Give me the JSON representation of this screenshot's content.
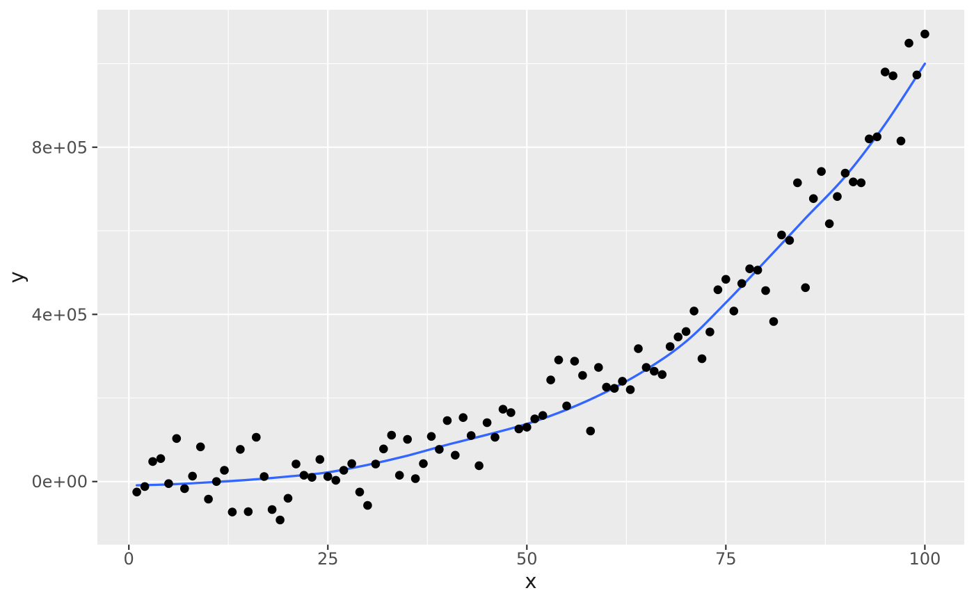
{
  "chart_data": {
    "type": "scatter",
    "title": "",
    "xlabel": "x",
    "ylabel": "y",
    "legend": "none",
    "grid": "major-and-minor",
    "panel": {
      "background": "#EBEBEB",
      "gridline_color": "#FFFFFF"
    },
    "colors": {
      "point": "#000000",
      "smooth_line": "#3366FF",
      "tick_mark": "#333333",
      "tick_label": "#4D4D4D",
      "axis_title": "#1A1A1A",
      "outer_background": "#FFFFFF"
    },
    "x_axis": {
      "ticks": [
        0,
        25,
        50,
        75,
        100
      ],
      "tick_labels": [
        "0",
        "25",
        "50",
        "75",
        "100"
      ],
      "minor_breaks": [
        12.5,
        37.5,
        62.5,
        87.5
      ],
      "limits": [
        -3.95,
        104.95
      ]
    },
    "y_axis": {
      "ticks": [
        0,
        400000,
        800000
      ],
      "tick_labels": [
        "0e+00",
        "4e+05",
        "8e+05"
      ],
      "minor_breaks": [
        200000,
        600000,
        1000000
      ],
      "limits": [
        -151000,
        1129000
      ]
    },
    "smooth_line": [
      [
        1,
        -9000
      ],
      [
        5,
        -7000
      ],
      [
        10,
        -2000
      ],
      [
        15,
        4000
      ],
      [
        20,
        12000
      ],
      [
        25,
        22000
      ],
      [
        30,
        40000
      ],
      [
        35,
        62000
      ],
      [
        40,
        88000
      ],
      [
        45,
        112000
      ],
      [
        50,
        138000
      ],
      [
        55,
        172000
      ],
      [
        60,
        215000
      ],
      [
        65,
        268000
      ],
      [
        70,
        335000
      ],
      [
        75,
        428000
      ],
      [
        80,
        528000
      ],
      [
        85,
        630000
      ],
      [
        90,
        730000
      ],
      [
        95,
        855000
      ],
      [
        100,
        1000000
      ]
    ],
    "points": [
      [
        1,
        -25000
      ],
      [
        2,
        -12000
      ],
      [
        3,
        48000
      ],
      [
        4,
        55000
      ],
      [
        5,
        -5000
      ],
      [
        6,
        103000
      ],
      [
        7,
        -17000
      ],
      [
        8,
        13000
      ],
      [
        9,
        83000
      ],
      [
        10,
        -42000
      ],
      [
        11,
        0
      ],
      [
        12,
        27000
      ],
      [
        13,
        -73000
      ],
      [
        14,
        77000
      ],
      [
        15,
        -72000
      ],
      [
        16,
        106000
      ],
      [
        17,
        12000
      ],
      [
        18,
        -67000
      ],
      [
        19,
        -92000
      ],
      [
        20,
        -40000
      ],
      [
        21,
        42000
      ],
      [
        22,
        15000
      ],
      [
        23,
        10000
      ],
      [
        24,
        53000
      ],
      [
        25,
        12000
      ],
      [
        26,
        3000
      ],
      [
        27,
        27000
      ],
      [
        28,
        43000
      ],
      [
        29,
        -25000
      ],
      [
        30,
        -57000
      ],
      [
        31,
        42000
      ],
      [
        32,
        78000
      ],
      [
        33,
        111000
      ],
      [
        34,
        15000
      ],
      [
        35,
        101000
      ],
      [
        36,
        7000
      ],
      [
        37,
        43000
      ],
      [
        38,
        108000
      ],
      [
        39,
        77000
      ],
      [
        40,
        146000
      ],
      [
        41,
        63000
      ],
      [
        42,
        153000
      ],
      [
        43,
        110000
      ],
      [
        44,
        38000
      ],
      [
        45,
        141000
      ],
      [
        46,
        106000
      ],
      [
        47,
        173000
      ],
      [
        48,
        165000
      ],
      [
        49,
        126000
      ],
      [
        50,
        130000
      ],
      [
        51,
        150000
      ],
      [
        52,
        158000
      ],
      [
        53,
        243000
      ],
      [
        54,
        291000
      ],
      [
        55,
        181000
      ],
      [
        56,
        288000
      ],
      [
        57,
        254000
      ],
      [
        58,
        121000
      ],
      [
        59,
        273000
      ],
      [
        60,
        226000
      ],
      [
        61,
        223000
      ],
      [
        62,
        240000
      ],
      [
        63,
        220000
      ],
      [
        64,
        318000
      ],
      [
        65,
        273000
      ],
      [
        66,
        264000
      ],
      [
        67,
        256000
      ],
      [
        68,
        323000
      ],
      [
        69,
        346000
      ],
      [
        70,
        359000
      ],
      [
        71,
        408000
      ],
      [
        72,
        294000
      ],
      [
        73,
        358000
      ],
      [
        74,
        459000
      ],
      [
        75,
        484000
      ],
      [
        76,
        408000
      ],
      [
        77,
        474000
      ],
      [
        78,
        509000
      ],
      [
        79,
        506000
      ],
      [
        80,
        457000
      ],
      [
        81,
        383000
      ],
      [
        82,
        590000
      ],
      [
        83,
        577000
      ],
      [
        84,
        715000
      ],
      [
        85,
        464000
      ],
      [
        86,
        677000
      ],
      [
        87,
        742000
      ],
      [
        88,
        617000
      ],
      [
        89,
        682000
      ],
      [
        90,
        738000
      ],
      [
        91,
        717000
      ],
      [
        92,
        715000
      ],
      [
        93,
        820000
      ],
      [
        94,
        825000
      ],
      [
        95,
        980000
      ],
      [
        96,
        971000
      ],
      [
        97,
        815000
      ],
      [
        98,
        1049000
      ],
      [
        99,
        973000
      ],
      [
        100,
        1071000
      ]
    ]
  }
}
